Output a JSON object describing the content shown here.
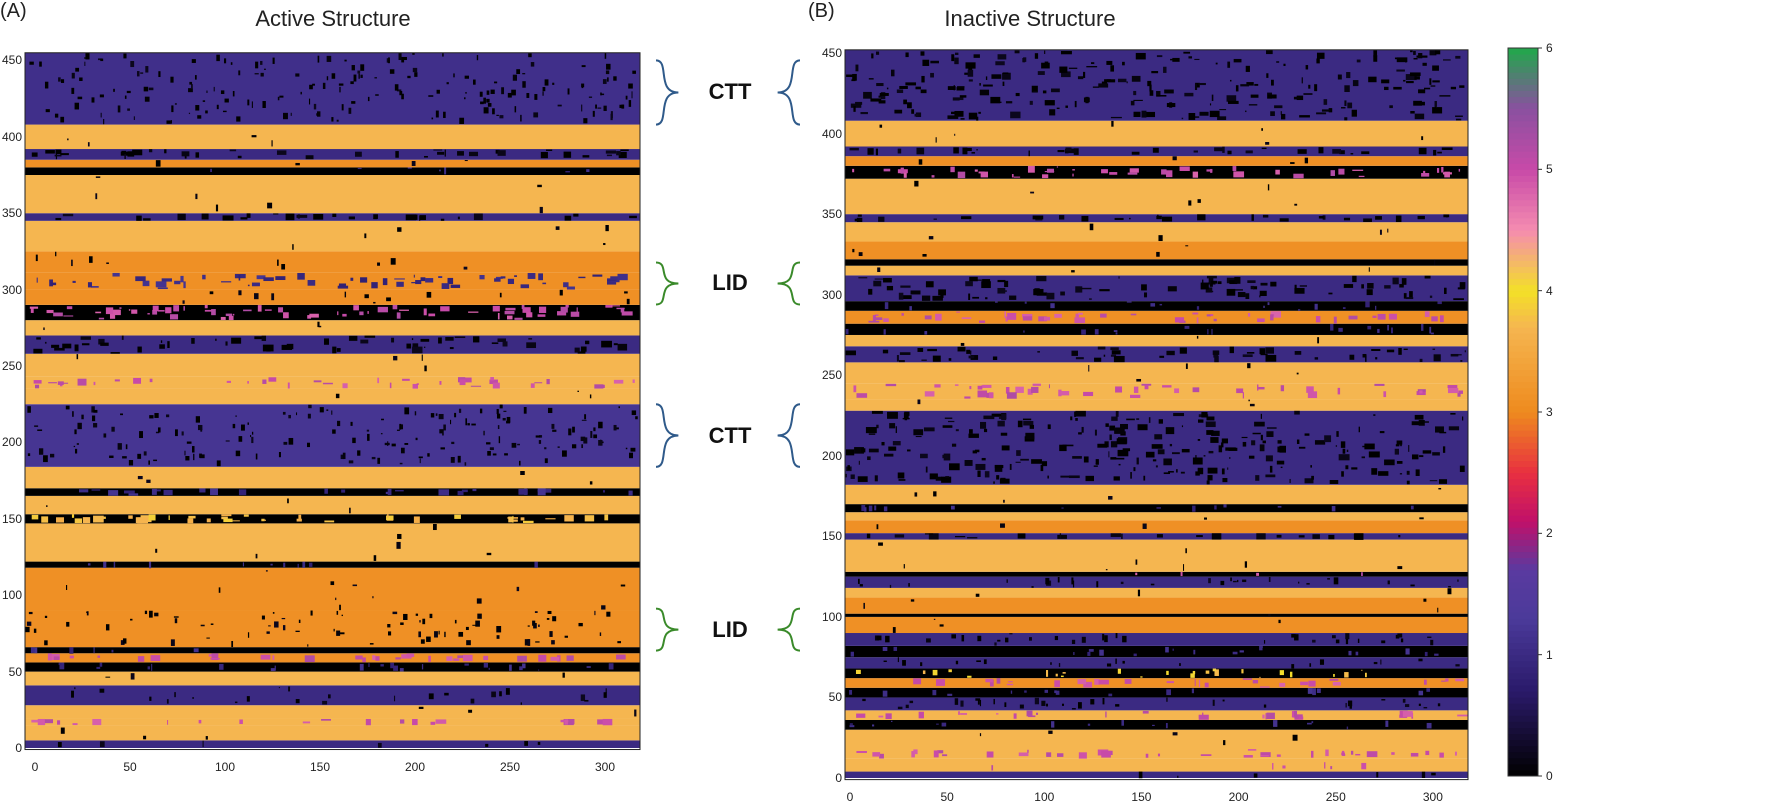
{
  "chart_data": [
    {
      "type": "heatmap",
      "panel_label": "(A)",
      "title": "Active Structure",
      "xlabel": "",
      "ylabel": "",
      "xlim": [
        0,
        318
      ],
      "ylim": [
        0,
        455
      ],
      "xticks": [
        "0",
        "50",
        "100",
        "150",
        "200",
        "250",
        "300"
      ],
      "yticks": [
        "0",
        "50",
        "100",
        "150",
        "200",
        "250",
        "300",
        "350",
        "400",
        "450"
      ],
      "row_bands": [
        {
          "from": 0,
          "to": 5,
          "value": 1,
          "noise": 0.1
        },
        {
          "from": 5,
          "to": 15,
          "value": 3.7,
          "noise": 0.02
        },
        {
          "from": 15,
          "to": 19,
          "value": 3.7,
          "noise": 0.4,
          "noise_value": 5
        },
        {
          "from": 19,
          "to": 28,
          "value": 3.7,
          "noise": 0.02
        },
        {
          "from": 28,
          "to": 41,
          "value": 1,
          "noise": 0.15,
          "noise_value": 0
        },
        {
          "from": 41,
          "to": 50,
          "value": 3.7,
          "noise": 0.02
        },
        {
          "from": 50,
          "to": 56,
          "value": 0,
          "noise": 0.3,
          "noise_value": 1
        },
        {
          "from": 56,
          "to": 62,
          "value": 3.1,
          "noise": 0.4,
          "noise_value": 5
        },
        {
          "from": 62,
          "to": 66,
          "value": 0,
          "noise": 0.1,
          "noise_value": 1
        },
        {
          "from": 66,
          "to": 90,
          "value": 3.1,
          "noise": 0.25,
          "noise_value": 0
        },
        {
          "from": 90,
          "to": 118,
          "value": 3.1,
          "noise": 0.03,
          "noise_value": 0
        },
        {
          "from": 118,
          "to": 122,
          "value": 0,
          "noise": 0.2,
          "noise_value": 1
        },
        {
          "from": 122,
          "to": 147,
          "value": 3.7,
          "noise": 0.02
        },
        {
          "from": 147,
          "to": 153,
          "value": 0,
          "noise": 0.5,
          "noise_value": 3.7
        },
        {
          "from": 153,
          "to": 165,
          "value": 3.7,
          "noise": 0.02
        },
        {
          "from": 165,
          "to": 170,
          "value": 0,
          "noise": 0.4,
          "noise_value": 1
        },
        {
          "from": 170,
          "to": 184,
          "value": 3.7,
          "noise": 0.02
        },
        {
          "from": 184,
          "to": 225,
          "value": 1.2,
          "noise": 0.3,
          "noise_value": 0
        },
        {
          "from": 225,
          "to": 235,
          "value": 3.7,
          "noise": 0.02
        },
        {
          "from": 235,
          "to": 243,
          "value": 3.7,
          "noise": 0.35,
          "noise_value": 5
        },
        {
          "from": 243,
          "to": 258,
          "value": 3.7,
          "noise": 0.02
        },
        {
          "from": 258,
          "to": 270,
          "value": 1,
          "noise": 0.35,
          "noise_value": 0
        },
        {
          "from": 270,
          "to": 280,
          "value": 3.7,
          "noise": 0.02
        },
        {
          "from": 280,
          "to": 290,
          "value": 0,
          "noise": 0.5,
          "noise_value": 5
        },
        {
          "from": 290,
          "to": 300,
          "value": 3.1,
          "noise": 0.1,
          "noise_value": 0
        },
        {
          "from": 300,
          "to": 311,
          "value": 3.1,
          "noise": 0.4,
          "noise_value": 1
        },
        {
          "from": 311,
          "to": 325,
          "value": 3.1,
          "noise": 0.05,
          "noise_value": 0
        },
        {
          "from": 325,
          "to": 345,
          "value": 3.7,
          "noise": 0.02
        },
        {
          "from": 345,
          "to": 350,
          "value": 1,
          "noise": 0.4,
          "noise_value": 0
        },
        {
          "from": 350,
          "to": 375,
          "value": 3.7,
          "noise": 0.02
        },
        {
          "from": 375,
          "to": 380,
          "value": 0,
          "noise": 0.1,
          "noise_value": 1
        },
        {
          "from": 380,
          "to": 385,
          "value": 3.1,
          "noise": 0.05
        },
        {
          "from": 385,
          "to": 392,
          "value": 1,
          "noise": 0.4,
          "noise_value": 0
        },
        {
          "from": 392,
          "to": 408,
          "value": 3.7,
          "noise": 0.02
        },
        {
          "from": 408,
          "to": 455,
          "value": 1.1,
          "noise": 0.3,
          "noise_value": 0
        }
      ],
      "annotations": [
        {
          "label": "CTT",
          "residue_range": [
            408,
            450
          ],
          "color": "#2f5a8a"
        },
        {
          "label": "LID",
          "residue_range": [
            296,
            312
          ],
          "color": "#3a8a2a"
        },
        {
          "label": "CTT",
          "residue_range": [
            184,
            225
          ],
          "color": "#2f5a8a"
        },
        {
          "label": "LID",
          "residue_range": [
            70,
            85
          ],
          "color": "#3a8a2a"
        }
      ]
    },
    {
      "type": "heatmap",
      "panel_label": "(B)",
      "title": "Inactive Structure",
      "xlabel": "",
      "ylabel": "",
      "xlim": [
        0,
        318
      ],
      "ylim": [
        0,
        452
      ],
      "xticks": [
        "0",
        "50",
        "100",
        "150",
        "200",
        "250",
        "300"
      ],
      "yticks": [
        "0",
        "50",
        "100",
        "150",
        "200",
        "250",
        "300",
        "350",
        "400",
        "450"
      ],
      "row_bands": [
        {
          "from": 0,
          "to": 4,
          "value": 1,
          "noise": 0.1
        },
        {
          "from": 4,
          "to": 12,
          "value": 3.7,
          "noise": 0.05,
          "noise_value": 5
        },
        {
          "from": 12,
          "to": 18,
          "value": 3.7,
          "noise": 0.45,
          "noise_value": 5
        },
        {
          "from": 18,
          "to": 30,
          "value": 3.7,
          "noise": 0.03
        },
        {
          "from": 30,
          "to": 36,
          "value": 0,
          "noise": 0.2,
          "noise_value": 1
        },
        {
          "from": 36,
          "to": 42,
          "value": 3.7,
          "noise": 0.35,
          "noise_value": 5
        },
        {
          "from": 42,
          "to": 50,
          "value": 1,
          "noise": 0.3,
          "noise_value": 0
        },
        {
          "from": 50,
          "to": 56,
          "value": 0,
          "noise": 0.2,
          "noise_value": 1
        },
        {
          "from": 56,
          "to": 62,
          "value": 3.1,
          "noise": 0.35,
          "noise_value": 5
        },
        {
          "from": 62,
          "to": 68,
          "value": 0,
          "noise": 0.3,
          "noise_value": 3.9
        },
        {
          "from": 68,
          "to": 75,
          "value": 1,
          "noise": 0.2,
          "noise_value": 0
        },
        {
          "from": 75,
          "to": 82,
          "value": 0,
          "noise": 0.2,
          "noise_value": 1
        },
        {
          "from": 82,
          "to": 90,
          "value": 1,
          "noise": 0.3,
          "noise_value": 0
        },
        {
          "from": 90,
          "to": 100,
          "value": 3.1,
          "noise": 0.03
        },
        {
          "from": 100,
          "to": 102,
          "value": 0,
          "noise": 0.05
        },
        {
          "from": 102,
          "to": 112,
          "value": 3.1,
          "noise": 0.03
        },
        {
          "from": 112,
          "to": 118,
          "value": 3.7,
          "noise": 0.03
        },
        {
          "from": 118,
          "to": 125,
          "value": 1,
          "noise": 0.3,
          "noise_value": 0
        },
        {
          "from": 125,
          "to": 128,
          "value": 0,
          "noise": 0.1,
          "noise_value": 5
        },
        {
          "from": 128,
          "to": 148,
          "value": 3.7,
          "noise": 0.03
        },
        {
          "from": 148,
          "to": 152,
          "value": 1,
          "noise": 0.4,
          "noise_value": 0
        },
        {
          "from": 152,
          "to": 160,
          "value": 3.1,
          "noise": 0.03
        },
        {
          "from": 160,
          "to": 165,
          "value": 3.7,
          "noise": 0.03
        },
        {
          "from": 165,
          "to": 170,
          "value": 0,
          "noise": 0.2,
          "noise_value": 1
        },
        {
          "from": 170,
          "to": 182,
          "value": 3.7,
          "noise": 0.03
        },
        {
          "from": 182,
          "to": 228,
          "value": 1,
          "noise": 0.4,
          "noise_value": 0
        },
        {
          "from": 228,
          "to": 235,
          "value": 3.7,
          "noise": 0.03
        },
        {
          "from": 235,
          "to": 245,
          "value": 3.7,
          "noise": 0.35,
          "noise_value": 5
        },
        {
          "from": 245,
          "to": 258,
          "value": 3.7,
          "noise": 0.03
        },
        {
          "from": 258,
          "to": 268,
          "value": 1,
          "noise": 0.4,
          "noise_value": 0
        },
        {
          "from": 268,
          "to": 275,
          "value": 3.7,
          "noise": 0.03
        },
        {
          "from": 275,
          "to": 282,
          "value": 0,
          "noise": 0.2,
          "noise_value": 1
        },
        {
          "from": 282,
          "to": 290,
          "value": 3.1,
          "noise": 0.4,
          "noise_value": 5
        },
        {
          "from": 290,
          "to": 296,
          "value": 0,
          "noise": 0.2,
          "noise_value": 1
        },
        {
          "from": 296,
          "to": 312,
          "value": 1,
          "noise": 0.4,
          "noise_value": 0
        },
        {
          "from": 312,
          "to": 318,
          "value": 3.7,
          "noise": 0.03
        },
        {
          "from": 318,
          "to": 322,
          "value": 0,
          "noise": 0.05
        },
        {
          "from": 322,
          "to": 333,
          "value": 3.1,
          "noise": 0.03
        },
        {
          "from": 333,
          "to": 345,
          "value": 3.7,
          "noise": 0.03
        },
        {
          "from": 345,
          "to": 350,
          "value": 1,
          "noise": 0.4,
          "noise_value": 0
        },
        {
          "from": 350,
          "to": 372,
          "value": 3.7,
          "noise": 0.02
        },
        {
          "from": 372,
          "to": 380,
          "value": 0,
          "noise": 0.4,
          "noise_value": 5
        },
        {
          "from": 380,
          "to": 386,
          "value": 3.1,
          "noise": 0.05
        },
        {
          "from": 386,
          "to": 392,
          "value": 1,
          "noise": 0.4,
          "noise_value": 0
        },
        {
          "from": 392,
          "to": 408,
          "value": 3.7,
          "noise": 0.03
        },
        {
          "from": 408,
          "to": 452,
          "value": 1,
          "noise": 0.4,
          "noise_value": 0
        }
      ]
    }
  ],
  "colorbar": {
    "range": [
      0,
      6
    ],
    "ticks": [
      "0",
      "1",
      "2",
      "3",
      "4",
      "5",
      "6"
    ],
    "stops": [
      {
        "v": 0,
        "c": "#000000"
      },
      {
        "v": 0.7,
        "c": "#2a1a6a"
      },
      {
        "v": 1.3,
        "c": "#4b3a9a"
      },
      {
        "v": 1.7,
        "c": "#5a3aa0"
      },
      {
        "v": 2.1,
        "c": "#c0106a"
      },
      {
        "v": 2.5,
        "c": "#e83040"
      },
      {
        "v": 3.0,
        "c": "#ee8a1e"
      },
      {
        "v": 3.7,
        "c": "#f5b650"
      },
      {
        "v": 4.0,
        "c": "#f3e027"
      },
      {
        "v": 4.5,
        "c": "#f58cb0"
      },
      {
        "v": 5.0,
        "c": "#c84aa8"
      },
      {
        "v": 5.5,
        "c": "#8a50a0"
      },
      {
        "v": 6.0,
        "c": "#20a84a"
      }
    ]
  }
}
